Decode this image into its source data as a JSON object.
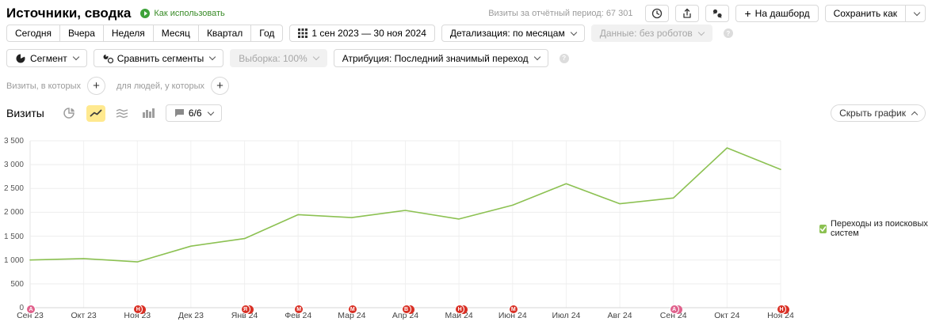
{
  "header": {
    "title": "Источники, сводка",
    "how_to_use": "Как использовать",
    "period_visits": "Визиты за отчётный период: 67 301",
    "add_to_dashboard": "На дашборд",
    "save_as": "Сохранить как"
  },
  "toolbar": {
    "periods": [
      "Сегодня",
      "Вчера",
      "Неделя",
      "Месяц",
      "Квартал",
      "Год"
    ],
    "date_range": "1 сен 2023 — 30 ноя 2024",
    "detalization": "Детализация: по месяцам",
    "data_filter": "Данные: без роботов",
    "segment": "Сегмент",
    "compare_segments": "Сравнить сегменты",
    "sampling": "Выборка: 100%",
    "attribution": "Атрибуция: Последний значимый переход"
  },
  "segment_builder": {
    "visits_label": "Визиты, в которых",
    "people_label": "для людей, у которых"
  },
  "chart_toolbar": {
    "title": "Визиты",
    "metrics_count": "6/6",
    "hide_chart": "Скрыть график"
  },
  "chart_data": {
    "type": "line",
    "title": "Визиты",
    "categories": [
      "Сен 23",
      "Окт 23",
      "Ноя 23",
      "Дек 23",
      "Янв 24",
      "Фев 24",
      "Мар 24",
      "Апр 24",
      "Май 24",
      "Июн 24",
      "Июл 24",
      "Авг 24",
      "Сен 24",
      "Окт 24",
      "Ноя 24"
    ],
    "series": [
      {
        "name": "Переходы из поисковых систем",
        "color": "#8cc152",
        "values": [
          1000,
          1030,
          960,
          1290,
          1450,
          1950,
          1890,
          2040,
          1860,
          2150,
          2600,
          2180,
          2300,
          3350,
          2900
        ]
      }
    ],
    "ylim": [
      0,
      3500
    ],
    "y_step": 500,
    "y_ticks": [
      "0",
      "500",
      "1 000",
      "1 500",
      "2 000",
      "2 500",
      "3 000",
      "3 500"
    ],
    "grid": true,
    "legend_position": "right",
    "annotations": [
      {
        "category": "Сен 23",
        "letter": "А",
        "count": 1,
        "color": "#e0618c"
      },
      {
        "category": "Ноя 23",
        "letter": "Н",
        "count": 2,
        "color": "#d93025"
      },
      {
        "category": "Янв 24",
        "letter": "Я",
        "count": 2,
        "color": "#d93025"
      },
      {
        "category": "Фев 24",
        "letter": "М",
        "count": 1,
        "color": "#d93025"
      },
      {
        "category": "Мар 24",
        "letter": "М",
        "count": 1,
        "color": "#d93025"
      },
      {
        "category": "Апр 24",
        "letter": "В",
        "count": 2,
        "color": "#d93025"
      },
      {
        "category": "Май 24",
        "letter": "Н",
        "count": 2,
        "color": "#d93025"
      },
      {
        "category": "Июн 24",
        "letter": "М",
        "count": 1,
        "color": "#d93025"
      },
      {
        "category": "Сен 24",
        "letter": "А",
        "count": 2,
        "color": "#e0618c"
      },
      {
        "category": "Ноя 24",
        "letter": "Н",
        "count": 2,
        "color": "#d93025"
      }
    ]
  }
}
